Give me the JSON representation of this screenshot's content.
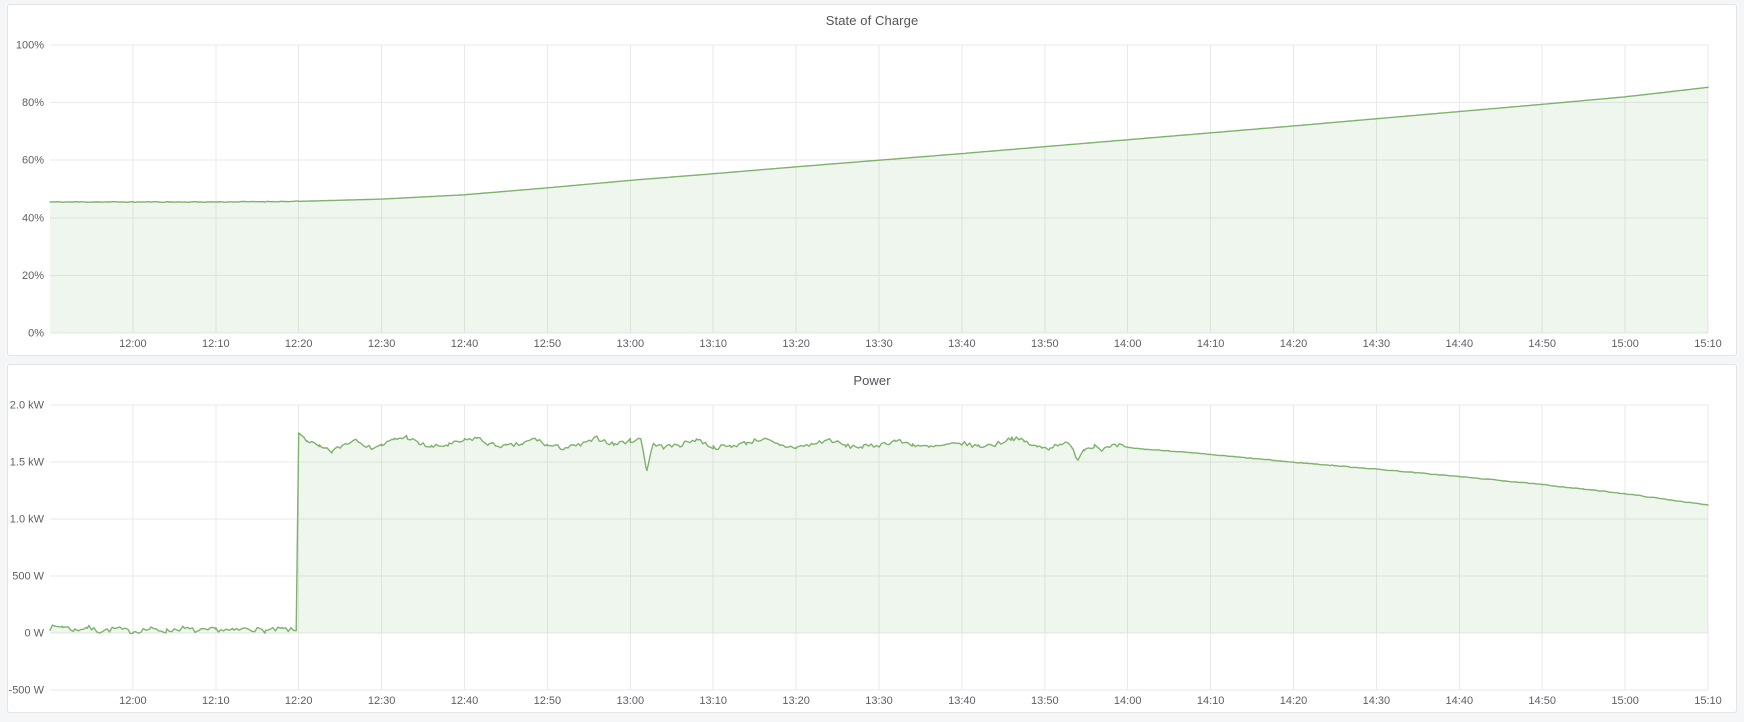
{
  "page": {
    "background": "#f4f6f8",
    "panel_background": "#ffffff",
    "panel_border": "#e3e5e9"
  },
  "theme": {
    "grid_color": "#e9eaec",
    "tick_text_color": "#5b5f66",
    "title_color": "#52545c",
    "series_green": "#7eb26d"
  },
  "chart_data": [
    {
      "type": "area",
      "title": "State of Charge",
      "xlabel": "",
      "ylabel": "",
      "y_range": [
        0,
        100
      ],
      "y_ticks": [
        {
          "value": 0,
          "label": "0%"
        },
        {
          "value": 20,
          "label": "20%"
        },
        {
          "value": 40,
          "label": "40%"
        },
        {
          "value": 60,
          "label": "60%"
        },
        {
          "value": 80,
          "label": "80%"
        },
        {
          "value": 100,
          "label": "100%"
        }
      ],
      "x_range": [
        "11:50",
        "15:10"
      ],
      "x_ticks": [
        "12:00",
        "12:10",
        "12:20",
        "12:30",
        "12:40",
        "12:50",
        "13:00",
        "13:10",
        "13:20",
        "13:30",
        "13:40",
        "13:50",
        "14:00",
        "14:10",
        "14:20",
        "14:30",
        "14:40",
        "14:50",
        "15:00",
        "15:10"
      ],
      "grid": true,
      "legend": "none",
      "noise_seed": 11,
      "series": [
        {
          "name": "State of Charge",
          "color": "#7eb26d",
          "fill_opacity": 0.12,
          "fill_to": 0,
          "points": [
            [
              "11:50",
              45.5
            ],
            [
              "12:00",
              45.5
            ],
            [
              "12:10",
              45.5
            ],
            [
              "12:20",
              45.7
            ],
            [
              "12:30",
              46.5
            ],
            [
              "12:40",
              48.0
            ],
            [
              "12:50",
              50.4
            ],
            [
              "13:00",
              53.0
            ],
            [
              "13:10",
              55.3
            ],
            [
              "13:20",
              57.7
            ],
            [
              "13:30",
              60.0
            ],
            [
              "13:40",
              62.3
            ],
            [
              "13:50",
              64.7
            ],
            [
              "14:00",
              67.1
            ],
            [
              "14:10",
              69.5
            ],
            [
              "14:20",
              71.9
            ],
            [
              "14:30",
              74.4
            ],
            [
              "14:40",
              76.9
            ],
            [
              "14:50",
              79.4
            ],
            [
              "15:00",
              82.0
            ],
            [
              "15:10",
              85.3
            ]
          ],
          "noise": [
            {
              "from": "11:50",
              "to": "12:20",
              "amp": 0.12
            }
          ]
        }
      ]
    },
    {
      "type": "area",
      "title": "Power",
      "xlabel": "",
      "ylabel": "",
      "y_range": [
        -500,
        2000
      ],
      "y_ticks": [
        {
          "value": -500,
          "label": "-500 W"
        },
        {
          "value": 0,
          "label": "0 W"
        },
        {
          "value": 500,
          "label": "500 W"
        },
        {
          "value": 1000,
          "label": "1.0 kW"
        },
        {
          "value": 1500,
          "label": "1.5 kW"
        },
        {
          "value": 2000,
          "label": "2.0 kW"
        }
      ],
      "x_range": [
        "11:50",
        "15:10"
      ],
      "x_ticks": [
        "12:00",
        "12:10",
        "12:20",
        "12:30",
        "12:40",
        "12:50",
        "13:00",
        "13:10",
        "13:20",
        "13:30",
        "13:40",
        "13:50",
        "14:00",
        "14:10",
        "14:20",
        "14:30",
        "14:40",
        "14:50",
        "15:00",
        "15:10"
      ],
      "grid": true,
      "legend": "none",
      "noise_seed": 7,
      "series": [
        {
          "name": "Power",
          "color": "#7eb26d",
          "fill_opacity": 0.12,
          "fill_to": 0,
          "points": [
            [
              "11:50",
              45
            ],
            [
              "11:51.5",
              60
            ],
            [
              "11:53",
              25
            ],
            [
              "11:54.5",
              50
            ],
            [
              "11:56",
              15
            ],
            [
              "11:58",
              38
            ],
            [
              "12:00",
              12
            ],
            [
              "12:02",
              35
            ],
            [
              "12:04",
              18
            ],
            [
              "12:06",
              42
            ],
            [
              "12:08",
              15
            ],
            [
              "12:10",
              32
            ],
            [
              "12:12",
              20
            ],
            [
              "12:14",
              40
            ],
            [
              "12:16",
              18
            ],
            [
              "12:18",
              35
            ],
            [
              "12:19.7",
              20
            ],
            [
              "12:20",
              1755
            ],
            [
              "12:21",
              1690
            ],
            [
              "12:22.5",
              1630
            ],
            [
              "12:24",
              1590
            ],
            [
              "12:25.5",
              1655
            ],
            [
              "12:27",
              1705
            ],
            [
              "12:28.5",
              1625
            ],
            [
              "12:30",
              1648
            ],
            [
              "12:31.5",
              1695
            ],
            [
              "12:33",
              1722
            ],
            [
              "12:34.5",
              1660
            ],
            [
              "12:36",
              1632
            ],
            [
              "12:38",
              1648
            ],
            [
              "12:40",
              1688
            ],
            [
              "12:41.5",
              1712
            ],
            [
              "12:43",
              1655
            ],
            [
              "12:45",
              1638
            ],
            [
              "12:47",
              1658
            ],
            [
              "12:48.5",
              1705
            ],
            [
              "12:50",
              1645
            ],
            [
              "12:52",
              1622
            ],
            [
              "12:54",
              1648
            ],
            [
              "12:56",
              1710
            ],
            [
              "12:58",
              1655
            ],
            [
              "13:00",
              1688
            ],
            [
              "13:01.3",
              1698
            ],
            [
              "13:02",
              1425
            ],
            [
              "13:02.7",
              1655
            ],
            [
              "13:04",
              1632
            ],
            [
              "13:06",
              1648
            ],
            [
              "13:08",
              1702
            ],
            [
              "13:10",
              1628
            ],
            [
              "13:12",
              1638
            ],
            [
              "13:14",
              1668
            ],
            [
              "13:16",
              1705
            ],
            [
              "13:18",
              1642
            ],
            [
              "13:20",
              1628
            ],
            [
              "13:22",
              1655
            ],
            [
              "13:24",
              1698
            ],
            [
              "13:26",
              1640
            ],
            [
              "13:28",
              1632
            ],
            [
              "13:30",
              1648
            ],
            [
              "13:32",
              1688
            ],
            [
              "13:34",
              1655
            ],
            [
              "13:36",
              1628
            ],
            [
              "13:38",
              1645
            ],
            [
              "13:40",
              1662
            ],
            [
              "13:42",
              1638
            ],
            [
              "13:44",
              1652
            ],
            [
              "13:46",
              1712
            ],
            [
              "13:47.5",
              1682
            ],
            [
              "13:49",
              1632
            ],
            [
              "13:50.5",
              1622
            ],
            [
              "13:52",
              1668
            ],
            [
              "13:53",
              1648
            ],
            [
              "13:54",
              1528
            ],
            [
              "13:54.7",
              1612
            ],
            [
              "13:56",
              1648
            ],
            [
              "13:57",
              1608
            ],
            [
              "13:58",
              1632
            ],
            [
              "13:59",
              1645
            ],
            [
              "14:00",
              1628
            ],
            [
              "14:02",
              1612
            ],
            [
              "14:05",
              1598
            ],
            [
              "14:10",
              1565
            ],
            [
              "14:15",
              1532
            ],
            [
              "14:20",
              1498
            ],
            [
              "14:25",
              1468
            ],
            [
              "14:30",
              1438
            ],
            [
              "14:35",
              1405
            ],
            [
              "14:40",
              1372
            ],
            [
              "14:45",
              1338
            ],
            [
              "14:50",
              1302
            ],
            [
              "14:55",
              1262
            ],
            [
              "15:00",
              1222
            ],
            [
              "15:05",
              1172
            ],
            [
              "15:10",
              1122
            ]
          ],
          "noise": [
            {
              "from": "11:50",
              "to": "12:19.5",
              "amp": 22
            },
            {
              "from": "12:20.5",
              "to": "13:59.5",
              "amp": 20
            },
            {
              "from": "14:00",
              "to": "15:10",
              "amp": 3
            }
          ]
        }
      ]
    }
  ]
}
